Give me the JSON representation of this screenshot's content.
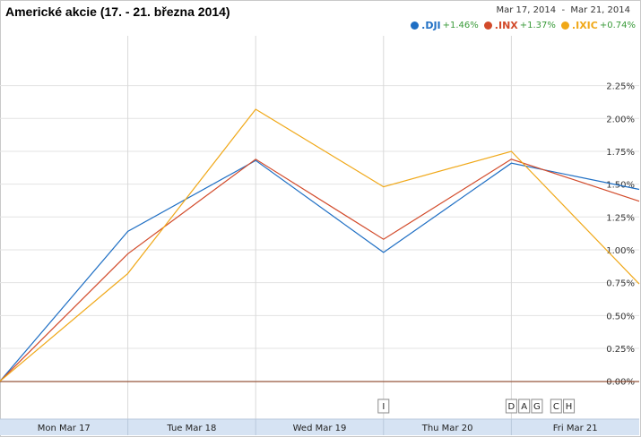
{
  "header": {
    "title": "Americké akcie (17. - 21. března 2014)",
    "date_range": "Mar 17, 2014  -  Mar 21, 2014"
  },
  "legend": [
    {
      "name": ".DJI",
      "change": "+1.46%",
      "color": "#1f6fc4"
    },
    {
      "name": ".INX",
      "change": "+1.37%",
      "color": "#d24a2a"
    },
    {
      "name": ".IXIC",
      "change": "+0.74%",
      "color": "#f0a818"
    }
  ],
  "chart_data": {
    "type": "line",
    "x": [
      0,
      1,
      2,
      3,
      4,
      5
    ],
    "xlim": [
      0,
      5
    ],
    "x_tick_labels": [
      "Mon Mar 17",
      "Tue Mar 18",
      "Wed Mar 19",
      "Thu Mar 20",
      "Fri Mar 21"
    ],
    "ylim": [
      -0.0005,
      0.0252
    ],
    "y_ticks": [
      "0.00%",
      "0.25%",
      "0.50%",
      "0.75%",
      "1.00%",
      "1.25%",
      "1.50%",
      "1.75%",
      "2.00%",
      "2.25%"
    ],
    "y_tick_values": [
      0,
      0.0025,
      0.005,
      0.0075,
      0.01,
      0.0125,
      0.015,
      0.0175,
      0.02,
      0.0225
    ],
    "series": [
      {
        "name": ".DJI",
        "color": "#1f6fc4",
        "values": [
          0.0,
          0.0114,
          0.0168,
          0.0098,
          0.0166,
          0.0146
        ]
      },
      {
        "name": ".INX",
        "color": "#d24a2a",
        "values": [
          0.0,
          0.0097,
          0.0169,
          0.0108,
          0.0169,
          0.0137
        ]
      },
      {
        "name": ".IXIC",
        "color": "#f0a818",
        "values": [
          0.0,
          0.0082,
          0.0207,
          0.0148,
          0.0175,
          0.0074
        ]
      }
    ],
    "grid": true,
    "legend_position": "top-right",
    "event_flags": [
      {
        "label": "I",
        "x": 3
      },
      {
        "label": "D",
        "x": 4
      },
      {
        "label": "A",
        "x": 4.1
      },
      {
        "label": "G",
        "x": 4.2
      },
      {
        "label": "C",
        "x": 4.35
      },
      {
        "label": "H",
        "x": 4.45
      }
    ]
  }
}
